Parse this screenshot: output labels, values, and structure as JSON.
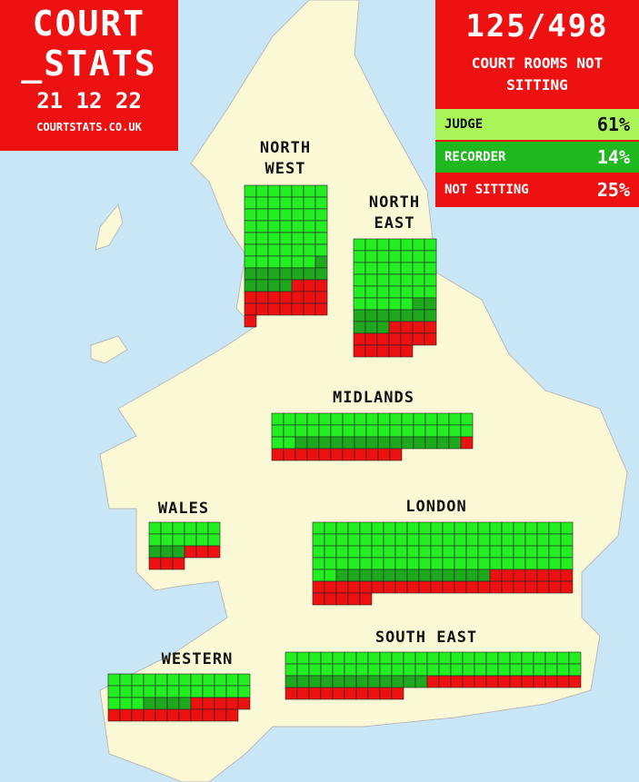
{
  "header": {
    "line1": "COURT",
    "line2": "_STATS",
    "date": "21 12 22",
    "site": "COURTSTATS.CO.UK"
  },
  "summary": {
    "count": "125/498",
    "caption": "COURT ROOMS NOT SITTING",
    "legend": [
      {
        "label": "JUDGE",
        "percent": "61%",
        "color": "#aaf55a"
      },
      {
        "label": "RECORDER",
        "percent": "14%",
        "color": "#1fb81f"
      },
      {
        "label": "NOT SITTING",
        "percent": "25%",
        "color": "#ee1111"
      }
    ]
  },
  "regions": [
    {
      "name": "NORTH WEST",
      "judge": 48,
      "recorder": 12,
      "not_sitting": 18
    },
    {
      "name": "NORTH EAST",
      "judge": 40,
      "recorder": 12,
      "not_sitting": 16
    },
    {
      "name": "MIDLANDS",
      "judge": 36,
      "recorder": 14,
      "not_sitting": 12
    },
    {
      "name": "WALES",
      "judge": 12,
      "recorder": 3,
      "not_sitting": 6
    },
    {
      "name": "LONDON",
      "judge": 90,
      "recorder": 13,
      "not_sitting": 34
    },
    {
      "name": "SOUTH EAST",
      "judge": 50,
      "recorder": 12,
      "not_sitting": 23
    },
    {
      "name": "WESTERN",
      "judge": 27,
      "recorder": 4,
      "not_sitting": 16
    }
  ],
  "colors": {
    "judge": "#22ee22",
    "recorder": "#1ea81e",
    "not_sitting": "#ee1111"
  }
}
